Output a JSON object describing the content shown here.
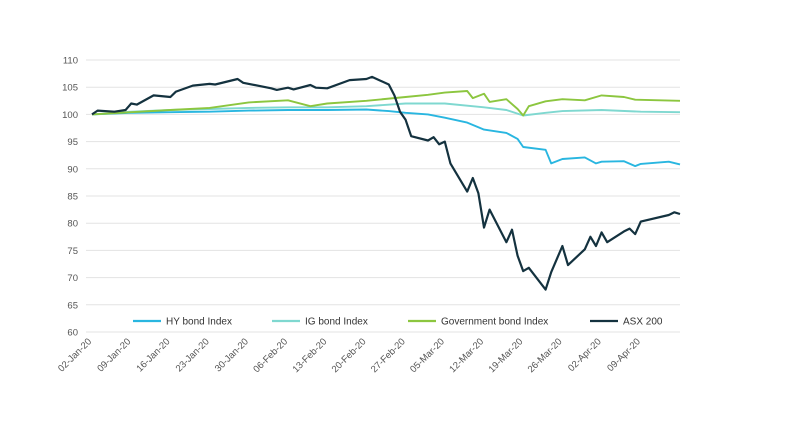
{
  "chart_data": {
    "type": "line",
    "title": "",
    "xlabel": "",
    "ylabel": "",
    "ylim": [
      60,
      110
    ],
    "y_ticks": [
      60,
      65,
      70,
      75,
      80,
      85,
      90,
      95,
      100,
      105,
      110
    ],
    "x_tick_labels": [
      "02-Jan-20",
      "09-Jan-20",
      "16-Jan-20",
      "23-Jan-20",
      "30-Jan-20",
      "06-Feb-20",
      "13-Feb-20",
      "20-Feb-20",
      "27-Feb-20",
      "05-Mar-20",
      "12-Mar-20",
      "19-Mar-20",
      "26-Mar-20",
      "02-Apr-20",
      "09-Apr-20"
    ],
    "x_range": [
      "2020-01-02",
      "2020-04-16"
    ],
    "grid": "horizontal",
    "legend_position": "bottom",
    "series": [
      {
        "name": "HY bond Index",
        "color": "#29b6e0",
        "points": [
          [
            "2020-01-02",
            100.0
          ],
          [
            "2020-01-09",
            100.3
          ],
          [
            "2020-01-16",
            100.4
          ],
          [
            "2020-01-23",
            100.5
          ],
          [
            "2020-01-30",
            100.7
          ],
          [
            "2020-02-06",
            100.8
          ],
          [
            "2020-02-13",
            100.8
          ],
          [
            "2020-02-20",
            100.9
          ],
          [
            "2020-02-24",
            100.6
          ],
          [
            "2020-02-27",
            100.3
          ],
          [
            "2020-03-02",
            100.0
          ],
          [
            "2020-03-05",
            99.4
          ],
          [
            "2020-03-09",
            98.5
          ],
          [
            "2020-03-12",
            97.2
          ],
          [
            "2020-03-16",
            96.6
          ],
          [
            "2020-03-18",
            95.5
          ],
          [
            "2020-03-19",
            94.0
          ],
          [
            "2020-03-23",
            93.5
          ],
          [
            "2020-03-24",
            91.0
          ],
          [
            "2020-03-26",
            91.8
          ],
          [
            "2020-03-30",
            92.1
          ],
          [
            "2020-04-01",
            91.0
          ],
          [
            "2020-04-02",
            91.3
          ],
          [
            "2020-04-06",
            91.4
          ],
          [
            "2020-04-08",
            90.5
          ],
          [
            "2020-04-09",
            90.9
          ],
          [
            "2020-04-14",
            91.3
          ],
          [
            "2020-04-16",
            90.8
          ]
        ]
      },
      {
        "name": "IG bond Index",
        "color": "#7fd8d0",
        "points": [
          [
            "2020-01-02",
            100.0
          ],
          [
            "2020-01-09",
            100.5
          ],
          [
            "2020-01-16",
            100.8
          ],
          [
            "2020-01-23",
            101.0
          ],
          [
            "2020-01-30",
            101.2
          ],
          [
            "2020-02-06",
            101.3
          ],
          [
            "2020-02-13",
            101.3
          ],
          [
            "2020-02-20",
            101.5
          ],
          [
            "2020-02-27",
            102.0
          ],
          [
            "2020-03-05",
            102.0
          ],
          [
            "2020-03-12",
            101.3
          ],
          [
            "2020-03-16",
            100.8
          ],
          [
            "2020-03-19",
            99.8
          ],
          [
            "2020-03-23",
            100.3
          ],
          [
            "2020-03-26",
            100.6
          ],
          [
            "2020-04-02",
            100.8
          ],
          [
            "2020-04-09",
            100.5
          ],
          [
            "2020-04-16",
            100.4
          ]
        ]
      },
      {
        "name": "Government bond Index",
        "color": "#8cc63f",
        "points": [
          [
            "2020-01-02",
            100.0
          ],
          [
            "2020-01-09",
            100.4
          ],
          [
            "2020-01-16",
            100.8
          ],
          [
            "2020-01-23",
            101.2
          ],
          [
            "2020-01-30",
            102.2
          ],
          [
            "2020-02-06",
            102.6
          ],
          [
            "2020-02-10",
            101.5
          ],
          [
            "2020-02-13",
            102.0
          ],
          [
            "2020-02-20",
            102.5
          ],
          [
            "2020-02-27",
            103.2
          ],
          [
            "2020-03-02",
            103.6
          ],
          [
            "2020-03-05",
            104.0
          ],
          [
            "2020-03-09",
            104.3
          ],
          [
            "2020-03-10",
            103.0
          ],
          [
            "2020-03-12",
            103.8
          ],
          [
            "2020-03-13",
            102.3
          ],
          [
            "2020-03-16",
            102.8
          ],
          [
            "2020-03-18",
            101.0
          ],
          [
            "2020-03-19",
            99.8
          ],
          [
            "2020-03-20",
            101.5
          ],
          [
            "2020-03-23",
            102.4
          ],
          [
            "2020-03-26",
            102.8
          ],
          [
            "2020-03-30",
            102.6
          ],
          [
            "2020-04-02",
            103.5
          ],
          [
            "2020-04-06",
            103.2
          ],
          [
            "2020-04-08",
            102.7
          ],
          [
            "2020-04-16",
            102.5
          ]
        ]
      },
      {
        "name": "ASX 200",
        "color": "#14323f",
        "points": [
          [
            "2020-01-02",
            100.0
          ],
          [
            "2020-01-03",
            100.7
          ],
          [
            "2020-01-06",
            100.5
          ],
          [
            "2020-01-08",
            100.8
          ],
          [
            "2020-01-09",
            102.0
          ],
          [
            "2020-01-10",
            101.8
          ],
          [
            "2020-01-13",
            103.5
          ],
          [
            "2020-01-16",
            103.2
          ],
          [
            "2020-01-17",
            104.2
          ],
          [
            "2020-01-20",
            105.3
          ],
          [
            "2020-01-23",
            105.6
          ],
          [
            "2020-01-24",
            105.5
          ],
          [
            "2020-01-28",
            106.5
          ],
          [
            "2020-01-29",
            105.8
          ],
          [
            "2020-02-03",
            104.8
          ],
          [
            "2020-02-04",
            104.5
          ],
          [
            "2020-02-06",
            104.9
          ],
          [
            "2020-02-07",
            104.6
          ],
          [
            "2020-02-10",
            105.4
          ],
          [
            "2020-02-11",
            104.9
          ],
          [
            "2020-02-13",
            104.8
          ],
          [
            "2020-02-17",
            106.3
          ],
          [
            "2020-02-20",
            106.5
          ],
          [
            "2020-02-21",
            106.9
          ],
          [
            "2020-02-24",
            105.5
          ],
          [
            "2020-02-25",
            103.5
          ],
          [
            "2020-02-26",
            100.5
          ],
          [
            "2020-02-27",
            99.0
          ],
          [
            "2020-02-28",
            96.0
          ],
          [
            "2020-03-02",
            95.2
          ],
          [
            "2020-03-03",
            95.8
          ],
          [
            "2020-03-04",
            94.5
          ],
          [
            "2020-03-05",
            95.0
          ],
          [
            "2020-03-06",
            91.0
          ],
          [
            "2020-03-09",
            85.8
          ],
          [
            "2020-03-10",
            88.3
          ],
          [
            "2020-03-11",
            85.5
          ],
          [
            "2020-03-12",
            79.2
          ],
          [
            "2020-03-13",
            82.5
          ],
          [
            "2020-03-16",
            76.5
          ],
          [
            "2020-03-17",
            78.8
          ],
          [
            "2020-03-18",
            74.0
          ],
          [
            "2020-03-19",
            71.2
          ],
          [
            "2020-03-20",
            71.8
          ],
          [
            "2020-03-23",
            67.8
          ],
          [
            "2020-03-24",
            71.0
          ],
          [
            "2020-03-26",
            75.8
          ],
          [
            "2020-03-27",
            72.3
          ],
          [
            "2020-03-30",
            75.2
          ],
          [
            "2020-03-31",
            77.5
          ],
          [
            "2020-04-01",
            75.8
          ],
          [
            "2020-04-02",
            78.3
          ],
          [
            "2020-04-03",
            76.5
          ],
          [
            "2020-04-06",
            78.5
          ],
          [
            "2020-04-07",
            79.0
          ],
          [
            "2020-04-08",
            78.0
          ],
          [
            "2020-04-09",
            80.3
          ],
          [
            "2020-04-14",
            81.5
          ],
          [
            "2020-04-15",
            82.0
          ],
          [
            "2020-04-16",
            81.7
          ]
        ]
      }
    ]
  }
}
